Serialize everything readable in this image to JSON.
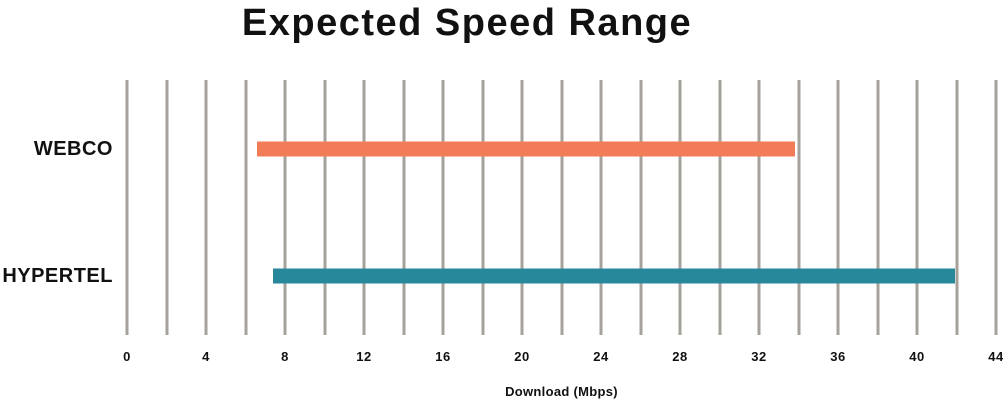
{
  "chart_data": {
    "type": "bar",
    "subtype": "horizontal-range-bar",
    "title": "Expected Speed Range",
    "xlabel": "Download (Mbps)",
    "categories": [
      "WEBCO",
      "HYPERTEL"
    ],
    "series": [
      {
        "name": "WEBCO",
        "range_min_mbps": 6.6,
        "range_max_mbps": 33.8,
        "color": "#F17C57"
      },
      {
        "name": "HYPERTEL",
        "range_min_mbps": 7.4,
        "range_max_mbps": 41.9,
        "color": "#27879B"
      }
    ],
    "xlim": [
      0,
      44
    ],
    "x_gridline_step": 2,
    "x_tick_label_step": 4,
    "x_tick_labels": [
      "0",
      "4",
      "8",
      "12",
      "16",
      "20",
      "24",
      "28",
      "32",
      "36",
      "40",
      "44"
    ],
    "grid": "vertical",
    "legend": "none",
    "colors": {
      "gridline": "#A5A19B",
      "text": "#111111",
      "background": "#FFFFFF"
    }
  }
}
